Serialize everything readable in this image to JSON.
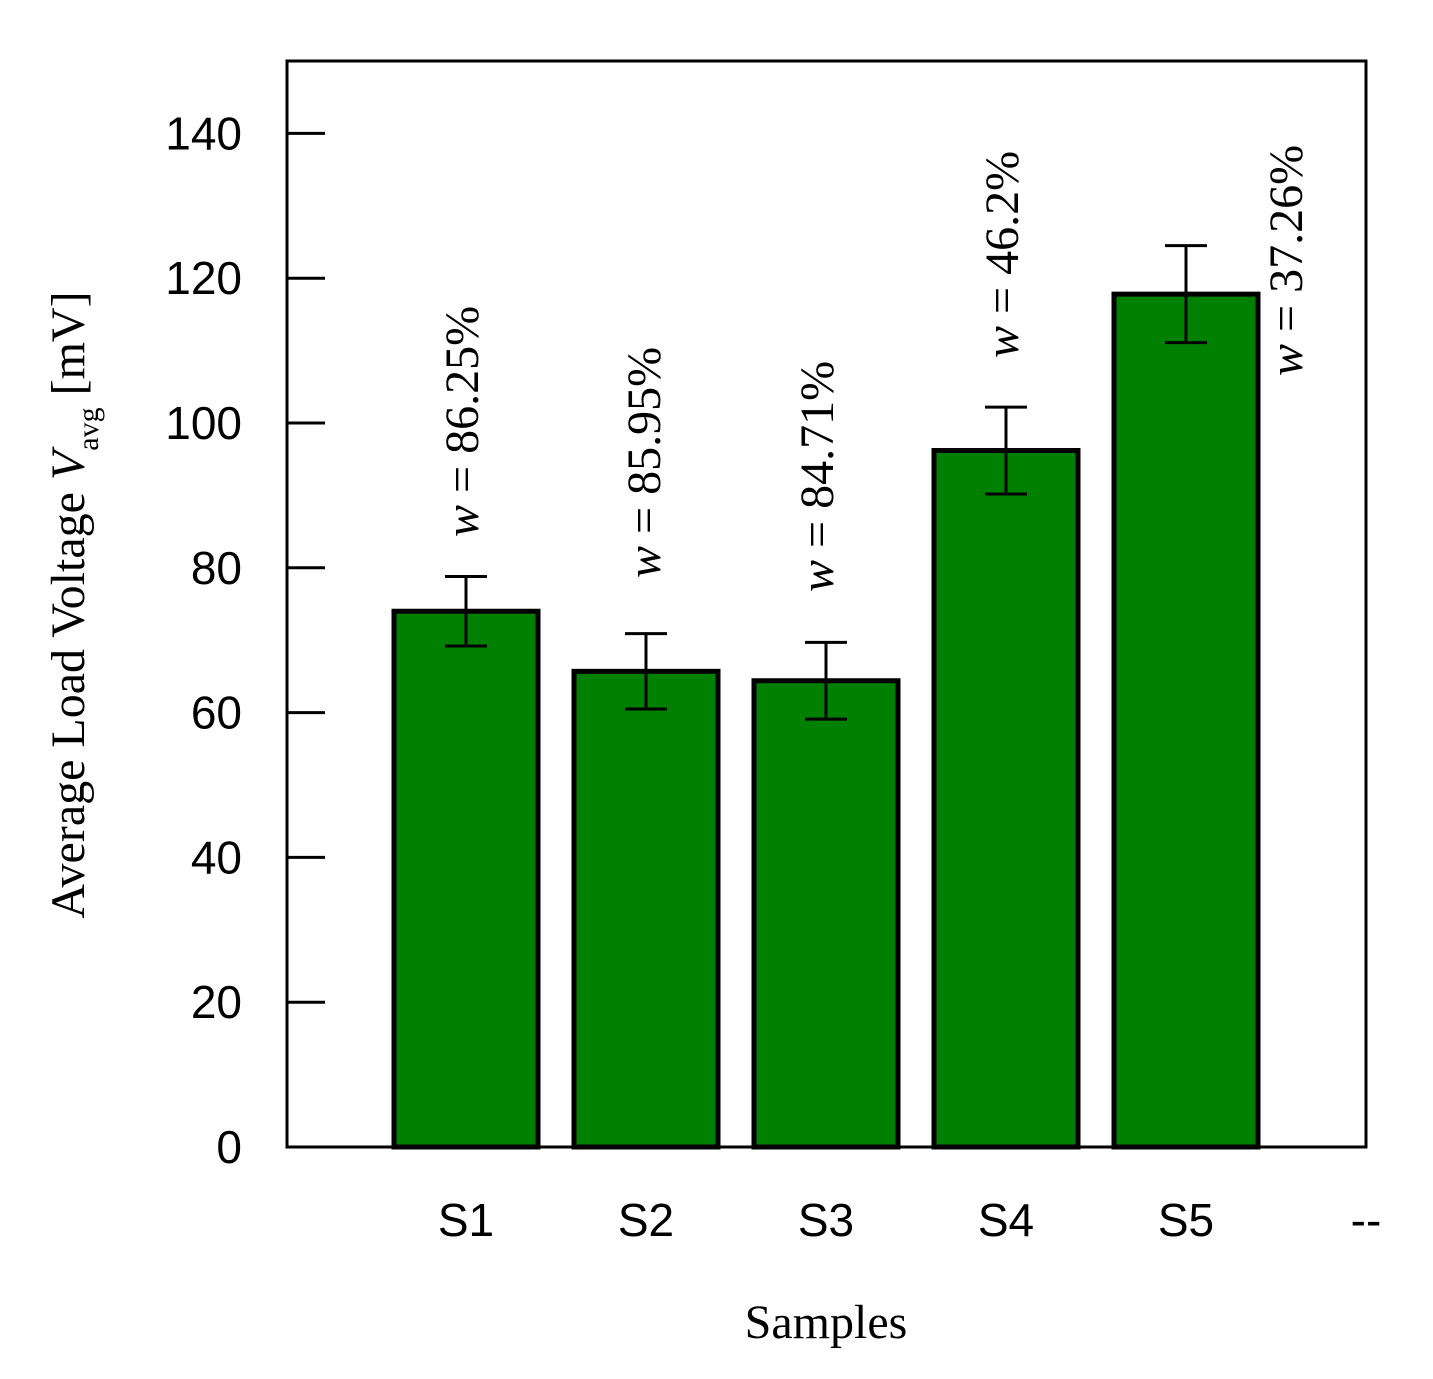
{
  "chart_data": {
    "type": "bar",
    "title": "",
    "xlabel": "Samples",
    "ylabel": {
      "prefix": "Average Load Voltage ",
      "symbol": "V",
      "subscript": "avg",
      "suffix": " [mV]"
    },
    "categories": [
      "S1",
      "S2",
      "S3",
      "S4",
      "S5",
      "--"
    ],
    "values": [
      74,
      65.7,
      64.4,
      96.2,
      117.8,
      null
    ],
    "error": [
      4.8,
      5.2,
      5.3,
      6.0,
      6.7,
      null
    ],
    "annotations": [
      {
        "var": "w",
        "eq": " = ",
        "value": "86.25%"
      },
      {
        "var": "w",
        "eq": " = ",
        "value": "85.95%"
      },
      {
        "var": "w",
        "eq": " = ",
        "value": "84.71%"
      },
      {
        "var": "w",
        "eq": " = ",
        "value": "46.2%"
      },
      {
        "var": "w",
        "eq": " = ",
        "value": "37.26%"
      }
    ],
    "ylim": [
      0,
      150
    ],
    "yticks": [
      0,
      20,
      40,
      60,
      80,
      100,
      120,
      140
    ],
    "grid": false,
    "bar_color": "#008000",
    "edge_color": "#000000"
  }
}
